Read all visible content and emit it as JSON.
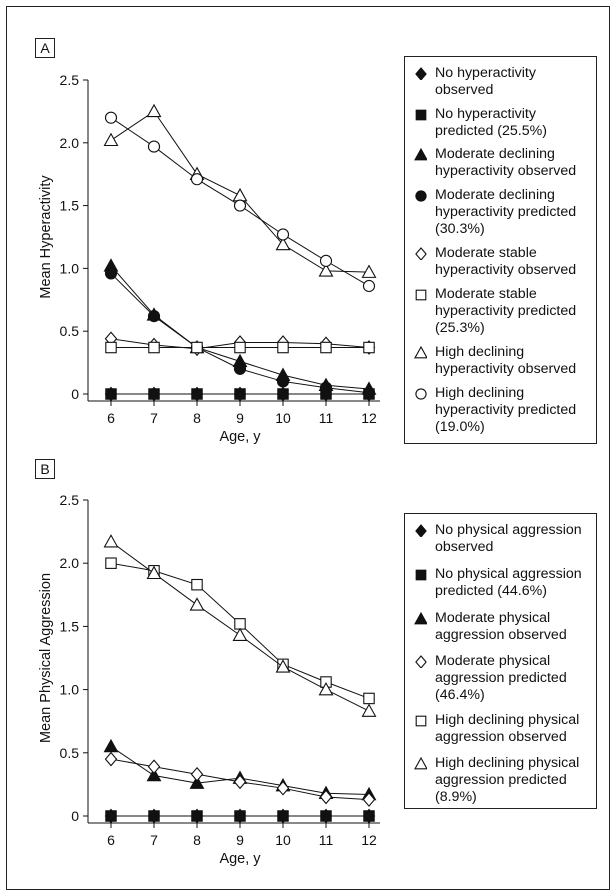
{
  "chart_data": [
    {
      "type": "line",
      "panel_label": "A",
      "xlabel": "Age, y",
      "ylabel": "Mean Hyperactivity",
      "x": [
        6,
        7,
        8,
        9,
        10,
        11,
        12
      ],
      "ylim": [
        0,
        2.5
      ],
      "yticks": [
        "0",
        "0.5",
        "1.0",
        "1.5",
        "2.0",
        "2.5"
      ],
      "yticks_values": [
        0,
        0.5,
        1.0,
        1.5,
        2.0,
        2.5
      ],
      "legend_position": "right",
      "series": [
        {
          "name": "No hyperactivity\nobserved",
          "marker": "diamond-filled",
          "values": [
            0,
            0,
            0,
            0,
            0,
            0,
            0
          ]
        },
        {
          "name": "No hyperactivity\npredicted (25.5%)",
          "marker": "square-filled",
          "values": [
            0,
            0,
            0,
            0,
            0,
            0,
            0
          ]
        },
        {
          "name": "Moderate declining\nhyperactivity observed",
          "marker": "triangle-filled",
          "values": [
            1.02,
            0.63,
            0.37,
            0.26,
            0.15,
            0.07,
            0.04
          ]
        },
        {
          "name": "Moderate declining\nhyperactivity predicted\n(30.3%)",
          "marker": "circle-filled",
          "values": [
            0.96,
            0.62,
            0.37,
            0.2,
            0.1,
            0.05,
            0.01
          ]
        },
        {
          "name": "Moderate stable\nhyperactivity observed",
          "marker": "diamond-open",
          "values": [
            0.44,
            0.39,
            0.36,
            0.41,
            0.41,
            0.4,
            0.37
          ]
        },
        {
          "name": "Moderate stable\nhyperactivity predicted\n(25.3%)",
          "marker": "square-open",
          "values": [
            0.37,
            0.37,
            0.37,
            0.37,
            0.37,
            0.37,
            0.37
          ]
        },
        {
          "name": "High declining\nhyperactivity observed",
          "marker": "triangle-open",
          "values": [
            2.02,
            2.25,
            1.75,
            1.58,
            1.19,
            0.98,
            0.97
          ]
        },
        {
          "name": "High declining\nhyperactivity predicted\n(19.0%)",
          "marker": "circle-open",
          "values": [
            2.2,
            1.97,
            1.71,
            1.5,
            1.27,
            1.06,
            0.86
          ]
        }
      ]
    },
    {
      "type": "line",
      "panel_label": "B",
      "xlabel": "Age, y",
      "ylabel": "Mean Physical Aggression",
      "x": [
        6,
        7,
        8,
        9,
        10,
        11,
        12
      ],
      "ylim": [
        0,
        2.5
      ],
      "yticks": [
        "0",
        "0.5",
        "1.0",
        "1.5",
        "2.0",
        "2.5"
      ],
      "yticks_values": [
        0,
        0.5,
        1.0,
        1.5,
        2.0,
        2.5
      ],
      "legend_position": "right",
      "series": [
        {
          "name": "No physical aggression\nobserved",
          "marker": "diamond-filled",
          "values": [
            0,
            0,
            0,
            0,
            0,
            0,
            0
          ]
        },
        {
          "name": "No physical aggression\npredicted (44.6%)",
          "marker": "square-filled",
          "values": [
            0,
            0,
            0,
            0,
            0,
            0,
            0
          ]
        },
        {
          "name": "Moderate physical\naggression observed",
          "marker": "triangle-filled",
          "values": [
            0.55,
            0.32,
            0.26,
            0.3,
            0.24,
            0.18,
            0.17
          ]
        },
        {
          "name": "Moderate physical\naggression predicted\n(46.4%)",
          "marker": "diamond-open",
          "values": [
            0.45,
            0.39,
            0.33,
            0.27,
            0.22,
            0.15,
            0.13
          ]
        },
        {
          "name": "High declining physical\naggression observed",
          "marker": "square-open",
          "values": [
            2.0,
            1.94,
            1.83,
            1.52,
            1.2,
            1.06,
            0.93
          ]
        },
        {
          "name": "High declining physical\naggression predicted\n(8.9%)",
          "marker": "triangle-open",
          "values": [
            2.17,
            1.92,
            1.67,
            1.43,
            1.18,
            1.0,
            0.83
          ]
        }
      ]
    }
  ]
}
